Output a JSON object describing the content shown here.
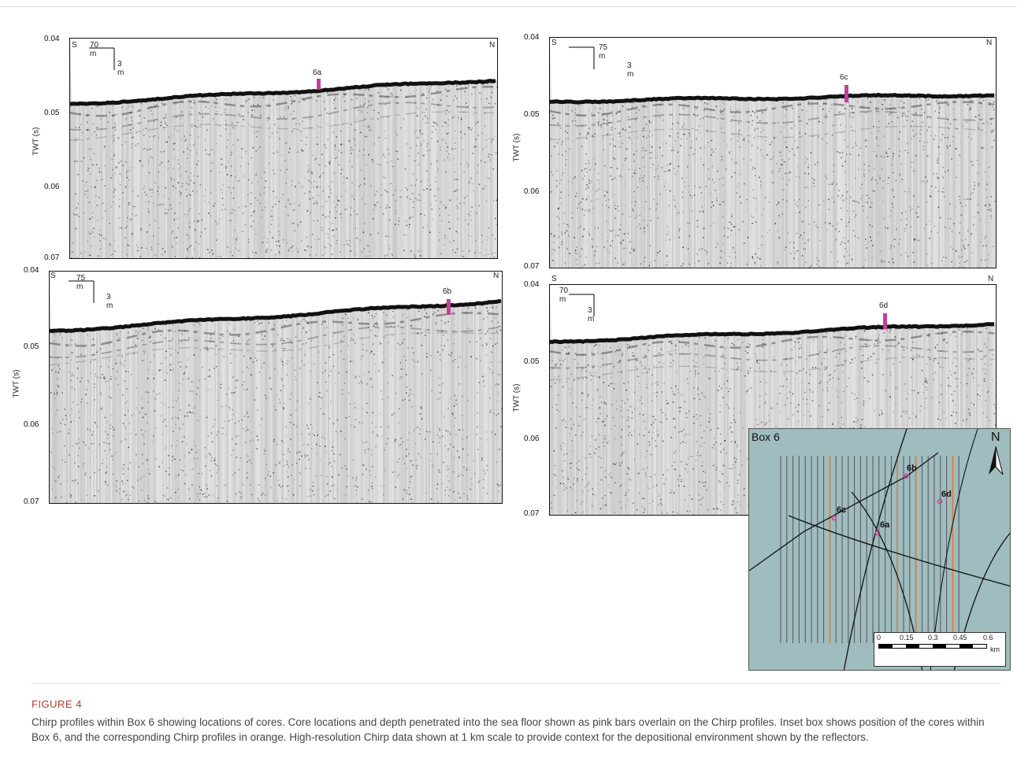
{
  "figure": {
    "label": "FIGURE 4",
    "caption": "Chirp profiles within Box 6 showing locations of cores. Core locations and depth penetrated into the sea floor shown as pink bars overlain on the Chirp profiles. Inset box shows position of the cores within Box 6, and the corresponding Chirp profiles in orange. High-resolution Chirp data shown at 1 km scale to provide context for the depositional environment shown by the reflectors."
  },
  "axis": {
    "ylabel": "TWT (s)",
    "ticks": [
      "0.04",
      "0.05",
      "0.06",
      "0.07"
    ]
  },
  "panels": [
    {
      "id": "6a",
      "south": "S",
      "north": "N",
      "hscale": "70 m",
      "vscale": "3 m",
      "core": "6a"
    },
    {
      "id": "6c",
      "south": "S",
      "north": "N",
      "hscale": "75 m",
      "vscale": "3 m",
      "core": "6c"
    },
    {
      "id": "6b",
      "south": "S",
      "north": "N",
      "hscale": "75 m",
      "vscale": "3 m",
      "core": "6b"
    },
    {
      "id": "6d",
      "south": "S",
      "north": "N",
      "hscale": "70 m",
      "vscale": "3 m",
      "core": "6d"
    }
  ],
  "inset": {
    "title": "Box 6",
    "north": "N",
    "cores": [
      "6a",
      "6b",
      "6c",
      "6d"
    ],
    "scalebar": {
      "ticks": [
        "0",
        "0.15",
        "0.3",
        "0.45",
        "0.6"
      ],
      "unit": "km"
    },
    "colors": {
      "sea": "#9fbcbf",
      "profile": "#555555",
      "highlight": "#e07a2e",
      "track": "#111111",
      "core": "#c2409a"
    }
  }
}
